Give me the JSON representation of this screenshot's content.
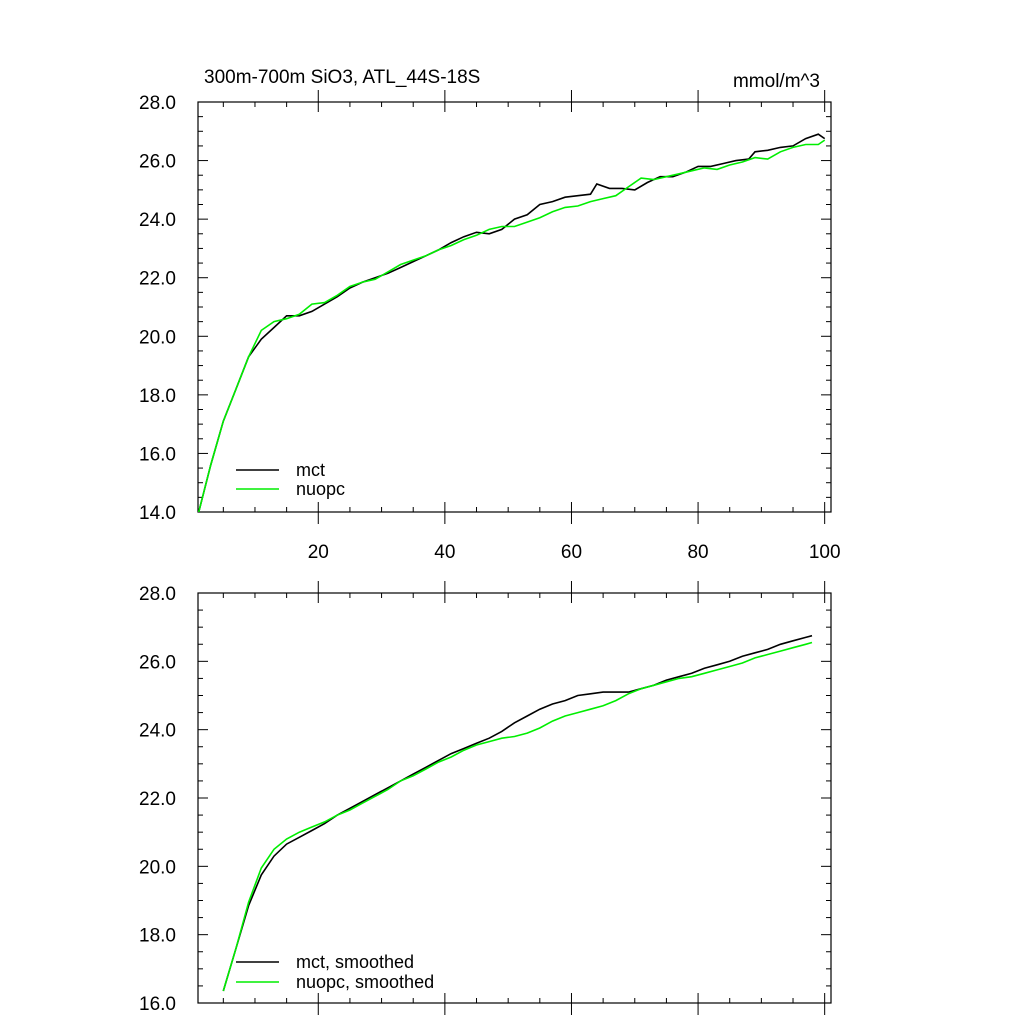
{
  "chart_data": [
    {
      "type": "line",
      "title": "300m-700m SiO3, ATL_44S-18S",
      "units": "mmol/m^3",
      "xlim": [
        1,
        101
      ],
      "ylim": [
        14.0,
        28.0
      ],
      "y_ticks": [
        "14.0",
        "16.0",
        "18.0",
        "20.0",
        "22.0",
        "24.0",
        "26.0",
        "28.0"
      ],
      "x_ticks": [
        "20",
        "40",
        "60",
        "80",
        "100"
      ],
      "grid": false,
      "legend_position": "bottom-left",
      "series": [
        {
          "name": "mct",
          "color": "#000000",
          "points": [
            [
              1,
              13.9
            ],
            [
              3,
              15.6
            ],
            [
              5,
              17.1
            ],
            [
              7,
              18.2
            ],
            [
              9,
              19.3
            ],
            [
              11,
              19.9
            ],
            [
              13,
              20.3
            ],
            [
              15,
              20.7
            ],
            [
              17,
              20.7
            ],
            [
              19,
              20.85
            ],
            [
              21,
              21.1
            ],
            [
              23,
              21.35
            ],
            [
              25,
              21.65
            ],
            [
              27,
              21.85
            ],
            [
              29,
              22.0
            ],
            [
              31,
              22.15
            ],
            [
              33,
              22.35
            ],
            [
              35,
              22.55
            ],
            [
              37,
              22.75
            ],
            [
              39,
              22.95
            ],
            [
              41,
              23.2
            ],
            [
              43,
              23.4
            ],
            [
              45,
              23.55
            ],
            [
              47,
              23.5
            ],
            [
              49,
              23.65
            ],
            [
              51,
              24.0
            ],
            [
              53,
              24.15
            ],
            [
              55,
              24.5
            ],
            [
              57,
              24.6
            ],
            [
              59,
              24.75
            ],
            [
              61,
              24.8
            ],
            [
              63,
              24.85
            ],
            [
              64,
              25.2
            ],
            [
              66,
              25.05
            ],
            [
              68,
              25.05
            ],
            [
              70,
              25.0
            ],
            [
              72,
              25.25
            ],
            [
              74,
              25.45
            ],
            [
              76,
              25.45
            ],
            [
              78,
              25.6
            ],
            [
              80,
              25.8
            ],
            [
              82,
              25.8
            ],
            [
              84,
              25.9
            ],
            [
              86,
              26.0
            ],
            [
              88,
              26.05
            ],
            [
              89,
              26.3
            ],
            [
              91,
              26.35
            ],
            [
              93,
              26.45
            ],
            [
              95,
              26.5
            ],
            [
              97,
              26.75
            ],
            [
              99,
              26.9
            ],
            [
              100,
              26.75
            ]
          ]
        },
        {
          "name": "nuopc",
          "color": "#00ee00",
          "points": [
            [
              1,
              13.9
            ],
            [
              3,
              15.6
            ],
            [
              5,
              17.1
            ],
            [
              7,
              18.2
            ],
            [
              9,
              19.3
            ],
            [
              11,
              20.2
            ],
            [
              13,
              20.5
            ],
            [
              15,
              20.6
            ],
            [
              17,
              20.75
            ],
            [
              19,
              21.1
            ],
            [
              21,
              21.15
            ],
            [
              23,
              21.4
            ],
            [
              25,
              21.7
            ],
            [
              27,
              21.85
            ],
            [
              29,
              21.95
            ],
            [
              31,
              22.2
            ],
            [
              33,
              22.45
            ],
            [
              35,
              22.6
            ],
            [
              37,
              22.75
            ],
            [
              39,
              22.95
            ],
            [
              41,
              23.1
            ],
            [
              43,
              23.3
            ],
            [
              45,
              23.45
            ],
            [
              47,
              23.65
            ],
            [
              49,
              23.75
            ],
            [
              51,
              23.75
            ],
            [
              53,
              23.9
            ],
            [
              55,
              24.05
            ],
            [
              57,
              24.25
            ],
            [
              59,
              24.4
            ],
            [
              61,
              24.45
            ],
            [
              63,
              24.6
            ],
            [
              65,
              24.7
            ],
            [
              67,
              24.8
            ],
            [
              69,
              25.1
            ],
            [
              71,
              25.4
            ],
            [
              73,
              25.35
            ],
            [
              75,
              25.45
            ],
            [
              77,
              25.55
            ],
            [
              79,
              25.65
            ],
            [
              81,
              25.75
            ],
            [
              83,
              25.7
            ],
            [
              85,
              25.85
            ],
            [
              87,
              25.95
            ],
            [
              89,
              26.1
            ],
            [
              91,
              26.05
            ],
            [
              93,
              26.3
            ],
            [
              95,
              26.45
            ],
            [
              97,
              26.55
            ],
            [
              99,
              26.55
            ],
            [
              100,
              26.7
            ]
          ]
        }
      ]
    },
    {
      "type": "line",
      "title": "",
      "xlim": [
        1,
        101
      ],
      "ylim": [
        16.0,
        28.0
      ],
      "y_ticks": [
        "16.0",
        "18.0",
        "20.0",
        "22.0",
        "24.0",
        "26.0",
        "28.0"
      ],
      "x_ticks": [],
      "grid": false,
      "legend_position": "bottom-left",
      "series": [
        {
          "name": "mct, smoothed",
          "color": "#000000",
          "points": [
            [
              5,
              16.35
            ],
            [
              7,
              17.6
            ],
            [
              9,
              18.85
            ],
            [
              11,
              19.75
            ],
            [
              13,
              20.3
            ],
            [
              15,
              20.65
            ],
            [
              17,
              20.85
            ],
            [
              19,
              21.05
            ],
            [
              21,
              21.25
            ],
            [
              23,
              21.5
            ],
            [
              25,
              21.7
            ],
            [
              27,
              21.9
            ],
            [
              29,
              22.1
            ],
            [
              31,
              22.3
            ],
            [
              33,
              22.5
            ],
            [
              35,
              22.7
            ],
            [
              37,
              22.9
            ],
            [
              39,
              23.1
            ],
            [
              41,
              23.3
            ],
            [
              43,
              23.45
            ],
            [
              45,
              23.6
            ],
            [
              47,
              23.75
            ],
            [
              49,
              23.95
            ],
            [
              51,
              24.2
            ],
            [
              53,
              24.4
            ],
            [
              55,
              24.6
            ],
            [
              57,
              24.75
            ],
            [
              59,
              24.85
            ],
            [
              61,
              25.0
            ],
            [
              63,
              25.05
            ],
            [
              65,
              25.1
            ],
            [
              67,
              25.1
            ],
            [
              69,
              25.1
            ],
            [
              71,
              25.2
            ],
            [
              73,
              25.3
            ],
            [
              75,
              25.45
            ],
            [
              77,
              25.55
            ],
            [
              79,
              25.65
            ],
            [
              81,
              25.8
            ],
            [
              83,
              25.9
            ],
            [
              85,
              26.0
            ],
            [
              87,
              26.15
            ],
            [
              89,
              26.25
            ],
            [
              91,
              26.35
            ],
            [
              93,
              26.5
            ],
            [
              95,
              26.6
            ],
            [
              97,
              26.7
            ],
            [
              98,
              26.75
            ]
          ]
        },
        {
          "name": "nuopc, smoothed",
          "color": "#00ee00",
          "points": [
            [
              5,
              16.35
            ],
            [
              7,
              17.6
            ],
            [
              9,
              18.95
            ],
            [
              11,
              19.95
            ],
            [
              13,
              20.5
            ],
            [
              15,
              20.8
            ],
            [
              17,
              21.0
            ],
            [
              19,
              21.15
            ],
            [
              21,
              21.3
            ],
            [
              23,
              21.5
            ],
            [
              25,
              21.65
            ],
            [
              27,
              21.85
            ],
            [
              29,
              22.05
            ],
            [
              31,
              22.25
            ],
            [
              33,
              22.5
            ],
            [
              35,
              22.65
            ],
            [
              37,
              22.85
            ],
            [
              39,
              23.05
            ],
            [
              41,
              23.2
            ],
            [
              43,
              23.4
            ],
            [
              45,
              23.55
            ],
            [
              47,
              23.65
            ],
            [
              49,
              23.75
            ],
            [
              51,
              23.8
            ],
            [
              53,
              23.9
            ],
            [
              55,
              24.05
            ],
            [
              57,
              24.25
            ],
            [
              59,
              24.4
            ],
            [
              61,
              24.5
            ],
            [
              63,
              24.6
            ],
            [
              65,
              24.7
            ],
            [
              67,
              24.85
            ],
            [
              69,
              25.05
            ],
            [
              71,
              25.2
            ],
            [
              73,
              25.3
            ],
            [
              75,
              25.4
            ],
            [
              77,
              25.5
            ],
            [
              79,
              25.55
            ],
            [
              81,
              25.65
            ],
            [
              83,
              25.75
            ],
            [
              85,
              25.85
            ],
            [
              87,
              25.95
            ],
            [
              89,
              26.1
            ],
            [
              91,
              26.2
            ],
            [
              93,
              26.3
            ],
            [
              95,
              26.4
            ],
            [
              97,
              26.5
            ],
            [
              98,
              26.55
            ]
          ]
        }
      ]
    }
  ]
}
